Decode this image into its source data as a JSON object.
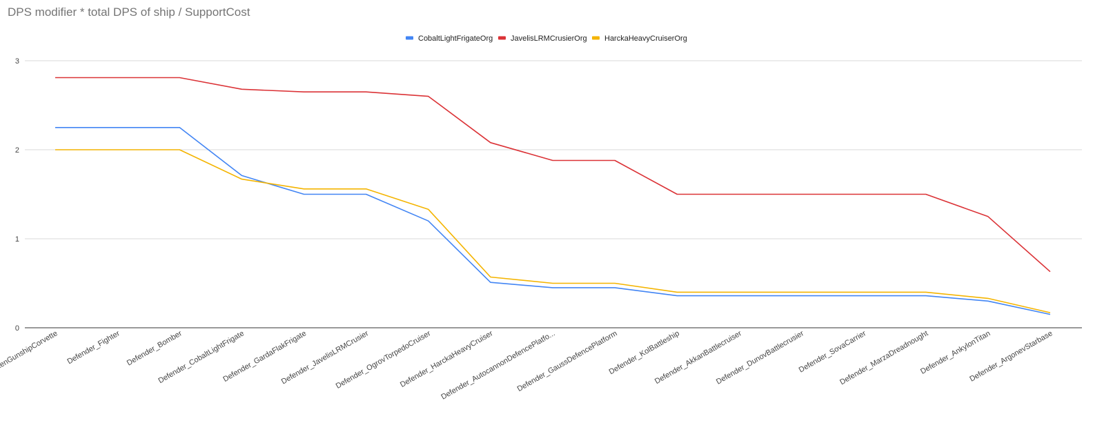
{
  "chart_data": {
    "type": "line",
    "title": "DPS modifier * total DPS of ship / SupportCost",
    "xlabel": "",
    "ylabel": "",
    "ylim": [
      0,
      3
    ],
    "yticks": [
      "0",
      "1",
      "2",
      "3"
    ],
    "grid": true,
    "legend_position": "top-center",
    "categories": [
      "Defender_ShrikenGunshipCorvette",
      "Defender_Fighter",
      "Defender_Bomber",
      "Defender_CobaltLightFrigate",
      "Defender_GardaFlakFrigate",
      "Defender_JavelisLRMCrusier",
      "Defender_OgrovTorpedoCruiser",
      "Defender_HarckaHeavyCruiser",
      "Defender_AutocannonDefencePlatfo...",
      "Defender_GaussDefencePlatform",
      "Defender_KolBattleship",
      "Defender_AkkanBattlecruiser",
      "Defender_DunovBattlecrusier",
      "Defender_SovaCarrier",
      "Defender_MarzaDreadnought",
      "Defender_AnkylonTitan",
      "Defender_ArgonevStarbase"
    ],
    "series": [
      {
        "name": "CobaltLightFrigateOrg",
        "color": "#4285f4",
        "values": [
          2.25,
          2.25,
          2.25,
          1.71,
          1.5,
          1.5,
          1.2,
          0.51,
          0.45,
          0.45,
          0.36,
          0.36,
          0.36,
          0.36,
          0.36,
          0.3,
          0.15
        ]
      },
      {
        "name": "JavelisLRMCrusierOrg",
        "color": "#db3236",
        "values": [
          2.81,
          2.81,
          2.81,
          2.68,
          2.65,
          2.65,
          2.6,
          2.08,
          1.88,
          1.88,
          1.5,
          1.5,
          1.5,
          1.5,
          1.5,
          1.25,
          0.63
        ]
      },
      {
        "name": "HarckaHeavyCruiserOrg",
        "color": "#f4b400",
        "values": [
          2.0,
          2.0,
          2.0,
          1.67,
          1.56,
          1.56,
          1.33,
          0.57,
          0.5,
          0.5,
          0.4,
          0.4,
          0.4,
          0.4,
          0.4,
          0.33,
          0.17
        ]
      }
    ]
  }
}
